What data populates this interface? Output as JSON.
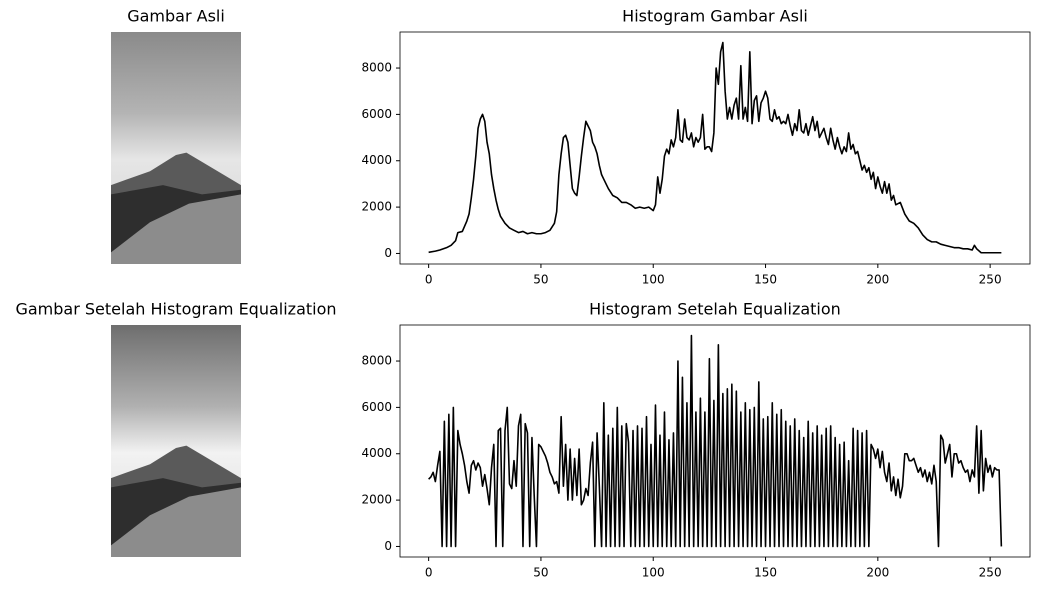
{
  "chart_data": [
    {
      "type": "image",
      "title": "Gambar Asli"
    },
    {
      "type": "line",
      "title": "Histogram Gambar Asli",
      "x": [
        0,
        3,
        5,
        8,
        10,
        12,
        13,
        15,
        17,
        18,
        19,
        20,
        21,
        22,
        23,
        24,
        25,
        26,
        27,
        28,
        29,
        30,
        31,
        32,
        34,
        36,
        38,
        40,
        42,
        44,
        46,
        48,
        50,
        52,
        54,
        56,
        57,
        58,
        59,
        60,
        61,
        62,
        63,
        64,
        65,
        66,
        67,
        68,
        69,
        70,
        71,
        72,
        73,
        74,
        75,
        76,
        77,
        78,
        80,
        82,
        84,
        86,
        88,
        90,
        92,
        94,
        96,
        98,
        100,
        101,
        102,
        103,
        104,
        105,
        106,
        107,
        108,
        109,
        110,
        111,
        112,
        113,
        114,
        115,
        116,
        117,
        118,
        119,
        120,
        121,
        122,
        123,
        124,
        125,
        126,
        127,
        128,
        129,
        130,
        131,
        132,
        133,
        134,
        135,
        136,
        137,
        138,
        139,
        140,
        141,
        142,
        143,
        144,
        145,
        146,
        147,
        148,
        149,
        150,
        151,
        152,
        153,
        154,
        155,
        156,
        157,
        158,
        159,
        160,
        161,
        162,
        163,
        164,
        165,
        166,
        167,
        168,
        169,
        170,
        171,
        172,
        173,
        174,
        175,
        176,
        177,
        178,
        179,
        180,
        181,
        182,
        183,
        184,
        185,
        186,
        187,
        188,
        189,
        190,
        191,
        192,
        193,
        194,
        195,
        196,
        197,
        198,
        199,
        200,
        201,
        202,
        203,
        204,
        205,
        206,
        207,
        208,
        210,
        212,
        214,
        216,
        218,
        220,
        222,
        224,
        226,
        228,
        230,
        232,
        234,
        236,
        238,
        240,
        242,
        243,
        244,
        246,
        250,
        255
      ],
      "series": [
        {
          "color": "#000000",
          "values": [
            50,
            100,
            150,
            250,
            350,
            550,
            900,
            950,
            1400,
            1700,
            2400,
            3200,
            4200,
            5400,
            5800,
            6000,
            5700,
            4800,
            4300,
            3400,
            2800,
            2300,
            1900,
            1600,
            1300,
            1100,
            1000,
            900,
            950,
            850,
            900,
            850,
            850,
            900,
            1000,
            1300,
            1800,
            3400,
            4300,
            5000,
            5100,
            4800,
            3800,
            2800,
            2600,
            2500,
            3300,
            4200,
            5000,
            5700,
            5500,
            5300,
            4800,
            4600,
            4300,
            3800,
            3400,
            3200,
            2800,
            2500,
            2400,
            2200,
            2200,
            2100,
            1950,
            2000,
            1950,
            2000,
            1850,
            2100,
            3300,
            2600,
            3200,
            4200,
            4500,
            4300,
            4900,
            4600,
            5000,
            6200,
            4900,
            4800,
            5800,
            5000,
            4900,
            5200,
            4600,
            5000,
            4800,
            5000,
            6000,
            4500,
            4600,
            4600,
            4400,
            5200,
            8000,
            7300,
            8700,
            9100,
            7000,
            5800,
            6300,
            5800,
            6400,
            6700,
            5800,
            8100,
            5800,
            6300,
            5700,
            8700,
            5600,
            6600,
            6800,
            5700,
            6500,
            6700,
            7000,
            6700,
            5800,
            5700,
            6200,
            5800,
            5900,
            5600,
            5700,
            5600,
            6000,
            5500,
            5100,
            5600,
            5300,
            6200,
            5300,
            5200,
            5600,
            5100,
            5500,
            5900,
            5300,
            5700,
            5000,
            5200,
            5400,
            5000,
            4700,
            5400,
            4900,
            4500,
            5000,
            4600,
            4300,
            4600,
            4400,
            5200,
            4500,
            4700,
            4300,
            4400,
            4000,
            3600,
            3800,
            3500,
            3700,
            3200,
            3500,
            2800,
            3300,
            2900,
            2600,
            3100,
            2600,
            3000,
            2300,
            2500,
            2100,
            2200,
            1700,
            1400,
            1300,
            1100,
            800,
            600,
            500,
            500,
            400,
            350,
            300,
            250,
            250,
            200,
            200,
            150,
            350,
            200,
            30,
            30,
            30
          ]
        }
      ],
      "xlim": [
        -12.75,
        267.75
      ],
      "xticks": [
        0,
        50,
        100,
        150,
        200,
        250
      ],
      "ylim": [
        -455,
        9555
      ],
      "yticks": [
        0,
        2000,
        4000,
        6000,
        8000
      ]
    },
    {
      "type": "image",
      "title": "Gambar Setelah Histogram Equalization"
    },
    {
      "type": "line",
      "title": "Histogram Setelah Equalization",
      "x": [
        0,
        1,
        2,
        3,
        4,
        5,
        6,
        7,
        8,
        9,
        10,
        11,
        12,
        13,
        14,
        15,
        16,
        17,
        18,
        19,
        20,
        21,
        22,
        23,
        24,
        25,
        26,
        27,
        28,
        29,
        30,
        31,
        32,
        33,
        34,
        35,
        36,
        37,
        38,
        39,
        40,
        41,
        42,
        43,
        44,
        45,
        46,
        47,
        48,
        49,
        50,
        51,
        52,
        53,
        54,
        55,
        56,
        57,
        58,
        59,
        60,
        61,
        62,
        63,
        64,
        65,
        66,
        67,
        68,
        69,
        70,
        71,
        72,
        73,
        74,
        75,
        76,
        77,
        78,
        79,
        80,
        81,
        82,
        83,
        84,
        85,
        86,
        87,
        88,
        89,
        90,
        91,
        92,
        93,
        94,
        95,
        96,
        97,
        98,
        99,
        100,
        101,
        102,
        103,
        104,
        105,
        106,
        107,
        108,
        109,
        110,
        111,
        112,
        113,
        114,
        115,
        116,
        117,
        118,
        119,
        120,
        121,
        122,
        123,
        124,
        125,
        126,
        127,
        128,
        129,
        130,
        131,
        132,
        133,
        134,
        135,
        136,
        137,
        138,
        139,
        140,
        141,
        142,
        143,
        144,
        145,
        146,
        147,
        148,
        149,
        150,
        151,
        152,
        153,
        154,
        155,
        156,
        157,
        158,
        159,
        160,
        161,
        162,
        163,
        164,
        165,
        166,
        167,
        168,
        169,
        170,
        171,
        172,
        173,
        174,
        175,
        176,
        177,
        178,
        179,
        180,
        181,
        182,
        183,
        184,
        185,
        186,
        187,
        188,
        189,
        190,
        191,
        192,
        193,
        194,
        195,
        196,
        197,
        198,
        199,
        200,
        201,
        202,
        203,
        204,
        205,
        206,
        207,
        208,
        209,
        210,
        211,
        212,
        213,
        214,
        215,
        216,
        217,
        218,
        219,
        220,
        221,
        222,
        223,
        224,
        225,
        226,
        227,
        228,
        229,
        230,
        231,
        232,
        233,
        234,
        235,
        236,
        237,
        238,
        239,
        240,
        241,
        242,
        243,
        244,
        245,
        246,
        247,
        248,
        249,
        250,
        251,
        252,
        253,
        254,
        255
      ],
      "series": [
        {
          "color": "#000000",
          "values": [
            2900,
            3000,
            3200,
            2800,
            3500,
            4100,
            0,
            5400,
            0,
            5700,
            0,
            6000,
            0,
            5000,
            4400,
            4000,
            3500,
            2800,
            2300,
            3500,
            3700,
            3300,
            3600,
            3400,
            2600,
            3100,
            2500,
            1800,
            3400,
            4400,
            0,
            5000,
            5100,
            0,
            5000,
            6000,
            2700,
            2500,
            3700,
            2600,
            5200,
            5700,
            0,
            5300,
            4900,
            0,
            4700,
            2200,
            0,
            4400,
            4300,
            4100,
            3900,
            3600,
            3200,
            3000,
            2700,
            2800,
            2300,
            5600,
            2600,
            4400,
            2000,
            4200,
            2000,
            3800,
            2200,
            4200,
            1800,
            2000,
            2500,
            2200,
            3600,
            4500,
            0,
            4900,
            2600,
            0,
            6200,
            0,
            4800,
            0,
            5100,
            0,
            6000,
            0,
            5200,
            0,
            5300,
            4500,
            0,
            5000,
            0,
            5200,
            0,
            5100,
            0,
            5600,
            0,
            4400,
            0,
            6100,
            0,
            4800,
            0,
            5800,
            0,
            4600,
            0,
            4900,
            0,
            8000,
            0,
            7300,
            0,
            6200,
            0,
            9100,
            0,
            5800,
            0,
            6400,
            0,
            5800,
            0,
            8100,
            0,
            6300,
            0,
            8700,
            0,
            6600,
            0,
            6800,
            0,
            7000,
            0,
            6700,
            0,
            5800,
            0,
            6200,
            0,
            5900,
            0,
            6000,
            0,
            7100,
            0,
            5500,
            0,
            5600,
            0,
            6200,
            0,
            5700,
            0,
            5900,
            0,
            5400,
            0,
            5200,
            0,
            5500,
            0,
            5000,
            0,
            4700,
            0,
            5400,
            0,
            4900,
            0,
            5200,
            0,
            4800,
            0,
            5100,
            0,
            5200,
            0,
            4700,
            0,
            4400,
            0,
            4500,
            0,
            3700,
            0,
            5100,
            0,
            5000,
            0,
            4900,
            0,
            5000,
            0,
            4400,
            4200,
            3800,
            4200,
            3400,
            4100,
            3200,
            2800,
            3600,
            2400,
            3000,
            2200,
            2900,
            2100,
            2600,
            4000,
            4000,
            3700,
            3700,
            3800,
            3500,
            3200,
            3400,
            3000,
            3300,
            2800,
            3200,
            2700,
            3500,
            2800,
            0,
            4800,
            4600,
            3600,
            4000,
            4400,
            3000,
            4000,
            4000,
            3600,
            3700,
            3400,
            3200,
            3300,
            2800,
            3300,
            3000,
            5200,
            2300,
            5000,
            2400,
            3800,
            3200,
            3500,
            3000,
            3400,
            3300,
            3300,
            0
          ]
        }
      ],
      "xlim": [
        -12.75,
        267.75
      ],
      "xticks": [
        0,
        50,
        100,
        150,
        200,
        250
      ],
      "ylim": [
        -455,
        9555
      ],
      "yticks": [
        0,
        2000,
        4000,
        6000,
        8000
      ]
    }
  ]
}
